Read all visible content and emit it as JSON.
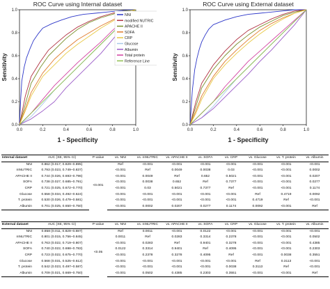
{
  "chart_data": [
    {
      "type": "line",
      "title": "ROC Curve using Internal dataset",
      "xlabel": "1 - Specificity",
      "ylabel": "Sensitivity",
      "xlim": [
        0,
        1
      ],
      "ylim": [
        0,
        1
      ],
      "ticks": [
        "0.0",
        "0.2",
        "0.4",
        "0.6",
        "0.8",
        "1.0"
      ],
      "legend_position": "right",
      "series": [
        {
          "name": "NNI",
          "color": "#2b35c8",
          "x": [
            0,
            0.01,
            0.02,
            0.04,
            0.06,
            0.09,
            0.12,
            0.16,
            0.2,
            0.28,
            0.36,
            0.45,
            0.55,
            0.65,
            0.75,
            0.85,
            0.95,
            1
          ],
          "y": [
            0,
            0.22,
            0.38,
            0.5,
            0.58,
            0.66,
            0.73,
            0.79,
            0.84,
            0.88,
            0.91,
            0.94,
            0.96,
            0.97,
            0.98,
            0.99,
            1,
            1
          ]
        },
        {
          "name": "modified NUTRIC",
          "color": "#b03040",
          "x": [
            0,
            0.05,
            0.1,
            0.18,
            0.25,
            0.33,
            0.4,
            0.5,
            0.6,
            0.7,
            0.8,
            0.9,
            1
          ],
          "y": [
            0,
            0.25,
            0.42,
            0.55,
            0.65,
            0.72,
            0.78,
            0.85,
            0.9,
            0.94,
            0.97,
            0.99,
            1
          ]
        },
        {
          "name": "APACHE II",
          "color": "#7a8f2a",
          "x": [
            0,
            0.05,
            0.1,
            0.18,
            0.25,
            0.33,
            0.4,
            0.5,
            0.6,
            0.7,
            0.8,
            0.9,
            1
          ],
          "y": [
            0,
            0.18,
            0.36,
            0.5,
            0.6,
            0.68,
            0.75,
            0.83,
            0.89,
            0.93,
            0.96,
            0.99,
            1
          ]
        },
        {
          "name": "SOFA",
          "color": "#e07a2a",
          "x": [
            0,
            0.05,
            0.1,
            0.2,
            0.3,
            0.4,
            0.5,
            0.6,
            0.7,
            0.8,
            0.9,
            1
          ],
          "y": [
            0,
            0.14,
            0.28,
            0.45,
            0.57,
            0.66,
            0.74,
            0.8,
            0.86,
            0.91,
            0.96,
            1
          ]
        },
        {
          "name": "CRP",
          "color": "#e8c842",
          "x": [
            0,
            0.05,
            0.1,
            0.2,
            0.3,
            0.4,
            0.5,
            0.6,
            0.7,
            0.8,
            0.9,
            1
          ],
          "y": [
            0,
            0.12,
            0.25,
            0.42,
            0.52,
            0.62,
            0.7,
            0.77,
            0.84,
            0.9,
            0.95,
            1
          ]
        },
        {
          "name": "Glucose",
          "color": "#a8c8e8",
          "x": [
            0,
            0.1,
            0.2,
            0.3,
            0.4,
            0.5,
            0.6,
            0.7,
            0.8,
            0.9,
            1
          ],
          "y": [
            0,
            0.07,
            0.18,
            0.3,
            0.4,
            0.5,
            0.6,
            0.7,
            0.8,
            0.9,
            1
          ]
        },
        {
          "name": "Albumin",
          "color": "#9a5ac8",
          "x": [
            0,
            0.1,
            0.2,
            0.3,
            0.4,
            0.5,
            0.6,
            0.7,
            0.8,
            0.9,
            1
          ],
          "y": [
            0,
            0.05,
            0.12,
            0.2,
            0.32,
            0.42,
            0.52,
            0.62,
            0.74,
            0.86,
            1
          ]
        },
        {
          "name": "Total protein",
          "color": "#d23fa0",
          "x": [
            0,
            0.1,
            0.2,
            0.3,
            0.4,
            0.5,
            0.6,
            0.7,
            0.8,
            0.9,
            1
          ],
          "y": [
            0,
            0.1,
            0.22,
            0.34,
            0.44,
            0.54,
            0.63,
            0.72,
            0.82,
            0.91,
            1
          ]
        },
        {
          "name": "Reference Line",
          "color": "#8fbf4f",
          "x": [
            0,
            1
          ],
          "y": [
            0,
            1
          ]
        }
      ]
    },
    {
      "type": "line",
      "title": "ROC Curve using External dataset",
      "xlabel": "1 - Specificity",
      "ylabel": "Sensitivity",
      "xlim": [
        0,
        1
      ],
      "ylim": [
        0,
        1
      ],
      "ticks": [
        "0.0",
        "0.2",
        "0.4",
        "0.6",
        "0.8",
        "1.0"
      ],
      "series": [
        {
          "color": "#2b35c8",
          "x": [
            0,
            0.02,
            0.04,
            0.06,
            0.08,
            0.1,
            0.13,
            0.16,
            0.2,
            0.3,
            0.4,
            0.5,
            0.6,
            0.7,
            0.8,
            0.9,
            1
          ],
          "y": [
            0,
            0.3,
            0.48,
            0.58,
            0.66,
            0.72,
            0.78,
            0.83,
            0.87,
            0.91,
            0.94,
            0.96,
            0.97,
            0.98,
            0.99,
            1,
            1
          ]
        },
        {
          "color": "#b03040",
          "x": [
            0,
            0.05,
            0.1,
            0.2,
            0.3,
            0.4,
            0.5,
            0.6,
            0.7,
            0.8,
            0.9,
            1
          ],
          "y": [
            0,
            0.2,
            0.36,
            0.52,
            0.64,
            0.74,
            0.82,
            0.87,
            0.92,
            0.96,
            0.99,
            1
          ]
        },
        {
          "color": "#7a8f2a",
          "x": [
            0,
            0.05,
            0.1,
            0.2,
            0.3,
            0.4,
            0.5,
            0.6,
            0.7,
            0.8,
            0.9,
            1
          ],
          "y": [
            0,
            0.16,
            0.32,
            0.48,
            0.6,
            0.7,
            0.78,
            0.85,
            0.9,
            0.95,
            0.98,
            1
          ]
        },
        {
          "color": "#e07a2a",
          "x": [
            0,
            0.05,
            0.1,
            0.2,
            0.3,
            0.4,
            0.5,
            0.6,
            0.7,
            0.8,
            0.9,
            1
          ],
          "y": [
            0,
            0.12,
            0.25,
            0.42,
            0.55,
            0.65,
            0.74,
            0.82,
            0.88,
            0.93,
            0.97,
            1
          ]
        },
        {
          "color": "#e8c842",
          "x": [
            0,
            0.05,
            0.1,
            0.2,
            0.3,
            0.4,
            0.5,
            0.6,
            0.7,
            0.8,
            0.9,
            1
          ],
          "y": [
            0,
            0.1,
            0.22,
            0.4,
            0.52,
            0.62,
            0.71,
            0.79,
            0.86,
            0.92,
            0.97,
            1
          ]
        },
        {
          "color": "#a8c8e8",
          "x": [
            0,
            0.1,
            0.2,
            0.3,
            0.4,
            0.5,
            0.6,
            0.7,
            0.8,
            0.9,
            1
          ],
          "y": [
            0,
            0.06,
            0.16,
            0.28,
            0.4,
            0.5,
            0.6,
            0.7,
            0.8,
            0.9,
            1
          ]
        },
        {
          "color": "#9a5ac8",
          "x": [
            0,
            0.1,
            0.2,
            0.3,
            0.4,
            0.5,
            0.6,
            0.7,
            0.8,
            0.9,
            1
          ],
          "y": [
            0,
            0.06,
            0.14,
            0.24,
            0.34,
            0.44,
            0.55,
            0.65,
            0.76,
            0.87,
            1
          ]
        },
        {
          "color": "#d23fa0",
          "x": [
            0,
            0.1,
            0.2,
            0.3,
            0.4,
            0.5,
            0.6,
            0.7,
            0.8,
            0.9,
            1
          ],
          "y": [
            0,
            0.1,
            0.2,
            0.33,
            0.44,
            0.55,
            0.64,
            0.73,
            0.82,
            0.91,
            1
          ]
        },
        {
          "color": "#8fbf4f",
          "x": [
            0,
            1
          ],
          "y": [
            0,
            1
          ]
        }
      ]
    }
  ],
  "tables": {
    "internal": {
      "headers": [
        "Internal dataset",
        "AUC (SE, 95% CI)",
        "P-value",
        "vs. NNI",
        "vs. mNUTRIC",
        "vs. APACHE II",
        "vs. SOFA",
        "vs. CRP",
        "vs. Glucose",
        "vs. T. protein",
        "vs. Albumin"
      ],
      "pvalue": "<0.001",
      "rows": [
        [
          "NNI",
          "0.862 (0.017, 0.829–0.895)",
          "Ref",
          "<0.001",
          "<0.001",
          "<0.001",
          "<0.001",
          "<0.001",
          "<0.001",
          "<0.001"
        ],
        [
          "mNUTRIC",
          "0.793 (0.023, 0.749–0.837)",
          "<0.001",
          "Ref",
          "0.0049",
          "0.0038",
          "0.03",
          "<0.001",
          "<0.001",
          "0.0002"
        ],
        [
          "APACHE II",
          "0.744 (0.026, 0.693–0.796)",
          "<0.001",
          "0.0049",
          "Ref",
          "0.652",
          "0.5021",
          "<0.001",
          "<0.001",
          "0.0207"
        ],
        [
          "SOFA",
          "0.738 (0.027, 0.685–0.791)",
          "<0.001",
          "0.0038",
          "0.652",
          "Ref",
          "0.7377",
          "<0.001",
          "<0.001",
          "0.0277"
        ],
        [
          "CRP",
          "0.721 (0.025, 0.672–0.770)",
          "<0.001",
          "0.03",
          "0.5021",
          "0.7377",
          "Ref",
          "<0.001",
          "<0.001",
          "0.1174"
        ],
        [
          "Glucose",
          "0.558 (0.034, 0.492–0.624)",
          "<0.001",
          "<0.001",
          "<0.001",
          "<0.001",
          "<0.001",
          "Ref",
          "0.4719",
          "0.0092"
        ],
        [
          "T. protein",
          "0.530 (0.026, 0.479–0.581)",
          "<0.001",
          "<0.001",
          "<0.001",
          "<0.001",
          "<0.001",
          "0.4719",
          "Ref",
          "<0.001"
        ],
        [
          "Albumin",
          "0.701 (0.025, 0.650–0.750)",
          "<0.001",
          "0.0002",
          "0.0207",
          "0.0277",
          "0.1174",
          "0.0092",
          "<0.001",
          "Ref"
        ]
      ]
    },
    "external": {
      "headers": [
        "External dataset",
        "AUC (SE, 95% CI)",
        "P-value",
        "vs. NNI",
        "vs. mNUTRIC",
        "vs. APACHE II",
        "vs. SOFA",
        "vs. CRP",
        "vs. Glucose",
        "vs. T. protein",
        "vs. Albumin"
      ],
      "pvalue": "<0.05",
      "rows": [
        [
          "NNI",
          "0.858 (0.011, 0.829–0.887)",
          "Ref",
          "0.0011",
          "<0.001",
          "0.0122",
          "<0.001",
          "<0.001",
          "<0.001",
          "<0.001"
        ],
        [
          "mNUTRIC",
          "0.801 (0.015, 0.756–0.845)",
          "0.0011",
          "Ref",
          "0.0283",
          "0.3314",
          "0.2378",
          "<0.001",
          "<0.001",
          "0.0502"
        ],
        [
          "APACHE II",
          "0.763 (0.022, 0.719–0.807)",
          "<0.001",
          "0.0283",
          "Ref",
          "0.9401",
          "0.3278",
          "<0.001",
          "<0.001",
          "0.4385"
        ],
        [
          "SOFA",
          "0.740 (0.022, 0.698–0.783)",
          "0.0122",
          "0.3314",
          "0.9401",
          "Ref",
          "0.4095",
          "<0.001",
          "<0.001",
          "0.2303"
        ],
        [
          "CRP",
          "0.723 (0.022, 0.675–0.770)",
          "<0.001",
          "0.2378",
          "0.3278",
          "0.4095",
          "Ref",
          "<0.001",
          "0.0038",
          "0.3551"
        ],
        [
          "Glucose",
          "0.568 (0.031, 0.525–0.612)",
          "<0.001",
          "<0.001",
          "<0.001",
          "<0.001",
          "<0.001",
          "Ref",
          "0.3113",
          "<0.001"
        ],
        [
          "T. protein",
          "0.542 (0.023, 0.497–0.587)",
          "<0.001",
          "<0.001",
          "<0.001",
          "<0.001",
          "0.0038",
          "0.3113",
          "Ref",
          "<0.001"
        ],
        [
          "Albumin",
          "0.709 (0.021, 0.669–0.750)",
          "<0.001",
          "0.0502",
          "0.4385",
          "0.2303",
          "0.3551",
          "<0.001",
          "<0.001",
          "Ref"
        ]
      ]
    }
  }
}
